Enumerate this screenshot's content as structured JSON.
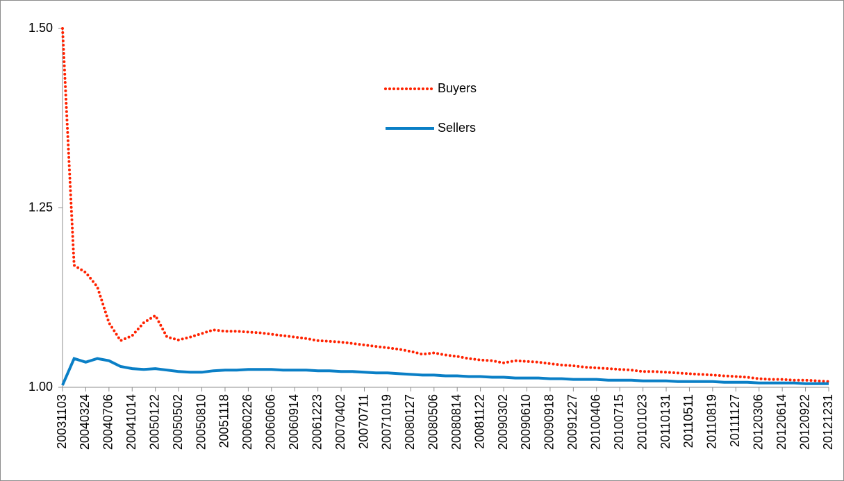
{
  "chart_data": {
    "type": "line",
    "categories": [
      "20031103",
      null,
      "20040324",
      null,
      "20040706",
      null,
      "20041014",
      null,
      "20050122",
      null,
      "20050502",
      null,
      "20050810",
      null,
      "20051118",
      null,
      "20060226",
      null,
      "20060606",
      null,
      "20060914",
      null,
      "20061223",
      null,
      "20070402",
      null,
      "20070711",
      null,
      "20071019",
      null,
      "20080127",
      null,
      "20080506",
      null,
      "20080814",
      null,
      "20081122",
      null,
      "20090302",
      null,
      "20090610",
      null,
      "20090918",
      null,
      "20091227",
      null,
      "20100406",
      null,
      "20100715",
      null,
      "20101023",
      null,
      "20110131",
      null,
      "20110511",
      null,
      "20110819",
      null,
      "20111127",
      null,
      "20120306",
      null,
      "20120614",
      null,
      "20120922",
      null,
      "20121231"
    ],
    "series": [
      {
        "name": "Buyers",
        "color": "#ff2200",
        "style": "dotted",
        "values": [
          1.5,
          1.17,
          1.16,
          1.14,
          1.09,
          1.065,
          1.072,
          1.09,
          1.1,
          1.07,
          1.066,
          1.07,
          1.075,
          1.08,
          1.078,
          1.078,
          1.077,
          1.076,
          1.074,
          1.072,
          1.07,
          1.068,
          1.065,
          1.064,
          1.063,
          1.061,
          1.059,
          1.057,
          1.055,
          1.053,
          1.05,
          1.046,
          1.048,
          1.045,
          1.043,
          1.04,
          1.038,
          1.037,
          1.034,
          1.037,
          1.036,
          1.035,
          1.033,
          1.031,
          1.03,
          1.028,
          1.027,
          1.026,
          1.025,
          1.024,
          1.022,
          1.022,
          1.021,
          1.02,
          1.019,
          1.018,
          1.017,
          1.016,
          1.015,
          1.014,
          1.012,
          1.011,
          1.011,
          1.01,
          1.01,
          1.009,
          1.008
        ]
      },
      {
        "name": "Sellers",
        "color": "#0a7fc6",
        "style": "solid",
        "values": [
          1.003,
          1.04,
          1.035,
          1.04,
          1.037,
          1.029,
          1.026,
          1.025,
          1.026,
          1.024,
          1.022,
          1.021,
          1.021,
          1.023,
          1.024,
          1.024,
          1.025,
          1.025,
          1.025,
          1.024,
          1.024,
          1.024,
          1.023,
          1.023,
          1.022,
          1.022,
          1.021,
          1.02,
          1.02,
          1.019,
          1.018,
          1.017,
          1.017,
          1.016,
          1.016,
          1.015,
          1.015,
          1.014,
          1.014,
          1.013,
          1.013,
          1.013,
          1.012,
          1.012,
          1.011,
          1.011,
          1.011,
          1.01,
          1.01,
          1.01,
          1.009,
          1.009,
          1.009,
          1.008,
          1.008,
          1.008,
          1.008,
          1.007,
          1.007,
          1.007,
          1.006,
          1.006,
          1.006,
          1.006,
          1.005,
          1.005,
          1.005
        ]
      }
    ],
    "ylim": [
      1,
      1.5
    ],
    "yticks": [
      {
        "value": 1,
        "label": "1.00"
      },
      {
        "value": 1.25,
        "label": "1.25"
      },
      {
        "value": 1.5,
        "label": "1.50"
      }
    ],
    "grid": false,
    "legend": "upper center"
  }
}
